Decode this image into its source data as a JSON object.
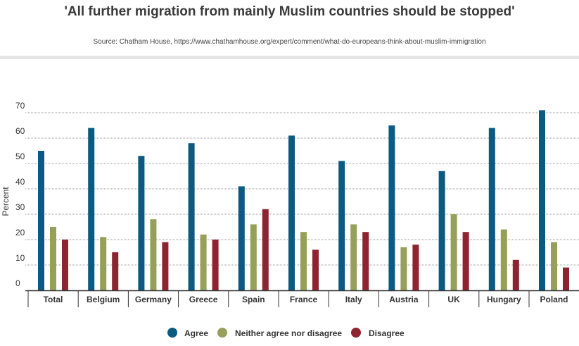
{
  "header": {
    "title": "'All further migration from mainly Muslim countries should be stopped'",
    "source": "Source: Chatham House, https://www.chathamhouse.org/expert/comment/what-do-europeans-think-about-muslim-immigration"
  },
  "colors": {
    "agree": "#0b5a82",
    "neither": "#97a05a",
    "disagree": "#8e2430",
    "grid": "#9a9a9a",
    "axis": "#333333"
  },
  "chart_data": {
    "type": "bar",
    "title": "'All further migration from mainly Muslim countries should be stopped'",
    "xlabel": "",
    "ylabel": "Percent",
    "ylim": [
      0,
      70
    ],
    "yticks": [
      0,
      10,
      20,
      30,
      40,
      50,
      60,
      70
    ],
    "grid": true,
    "legend_position": "bottom-center",
    "categories": [
      "Total",
      "Belgium",
      "Germany",
      "Greece",
      "Spain",
      "France",
      "Italy",
      "Austria",
      "UK",
      "Hungary",
      "Poland"
    ],
    "series": [
      {
        "name": "Agree",
        "color_key": "agree",
        "values": [
          55,
          64,
          53,
          58,
          41,
          61,
          51,
          65,
          47,
          64,
          71
        ]
      },
      {
        "name": "Neither agree nor disagree",
        "color_key": "neither",
        "values": [
          25,
          21,
          28,
          22,
          26,
          23,
          26,
          17,
          30,
          24,
          19
        ]
      },
      {
        "name": "Disagree",
        "color_key": "disagree",
        "values": [
          20,
          15,
          19,
          20,
          32,
          16,
          23,
          18,
          23,
          12,
          9
        ]
      }
    ]
  }
}
